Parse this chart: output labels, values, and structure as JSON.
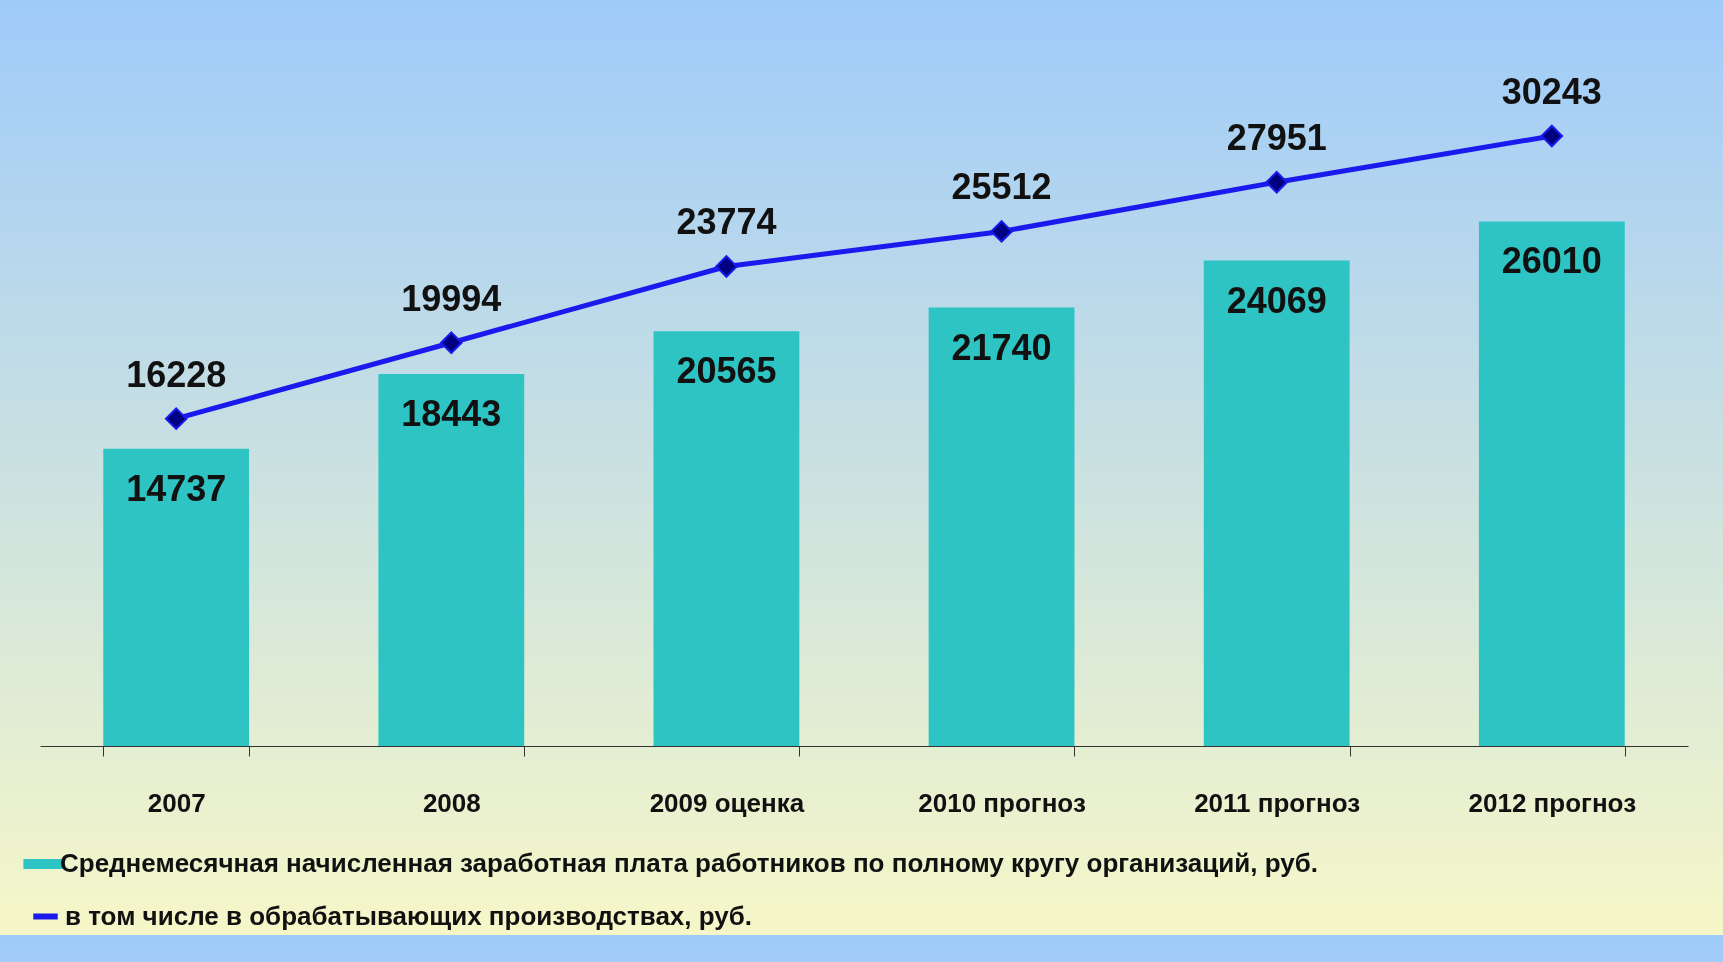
{
  "chart_data": {
    "type": "bar",
    "categories": [
      "2007",
      "2008",
      "2009 оценка",
      "2010 прогноз",
      "2011 прогноз",
      "2012 прогноз"
    ],
    "series": [
      {
        "name": "Среднемесячная начисленная заработная плата работников по полному кругу организаций, руб.",
        "color": "#2fc4c4",
        "values": [
          14737,
          18443,
          20565,
          21740,
          24069,
          26010
        ]
      },
      {
        "name": "в том числе в обрабатывающих производствах, руб.",
        "type": "line",
        "color": "#1a1aee",
        "marker": "diamond",
        "line_style": "solid",
        "values": [
          16228,
          19994,
          23774,
          25512,
          27951,
          30243
        ]
      }
    ],
    "data_labels": true,
    "legend": "bottom",
    "grid": false
  }
}
